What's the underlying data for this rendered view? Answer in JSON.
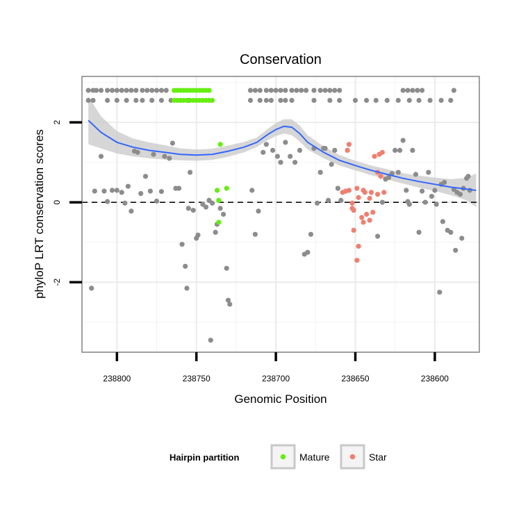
{
  "chart_data": {
    "type": "scatter",
    "title": "Conservation",
    "xlabel": "Genomic Position",
    "ylabel": "phyloP LRT conservation scores",
    "x_reversed": true,
    "xlim": [
      238822,
      238572
    ],
    "ylim": [
      -3.75,
      3.15
    ],
    "x_ticks": [
      238800,
      238750,
      238700,
      238650,
      238600
    ],
    "x_tick_labels": [
      "238800",
      "238750",
      "238700",
      "238650",
      "238600"
    ],
    "y_ticks": [
      -2,
      0,
      2
    ],
    "y_tick_labels": [
      "-2",
      "0",
      "2"
    ],
    "reference_line_y": 0,
    "colors": {
      "none": "#8c8c8c",
      "Mature": "#66ee11",
      "Star": "#f07f6f",
      "smooth": "#3366ff",
      "ribbon": "#c8c8c8",
      "panel_border": "#888888"
    },
    "legend": {
      "title": "Hairpin partition",
      "entries": [
        {
          "label": "Mature",
          "color": "#66ee11"
        },
        {
          "label": "Star",
          "color": "#f07f6f"
        }
      ]
    },
    "series": [
      {
        "name": "none",
        "points": [
          [
            238818,
            2.8
          ],
          [
            238815,
            2.8
          ],
          [
            238813,
            2.8
          ],
          [
            238810,
            2.8
          ],
          [
            238806,
            2.8
          ],
          [
            238803,
            2.8
          ],
          [
            238800,
            2.8
          ],
          [
            238797,
            2.8
          ],
          [
            238794,
            2.8
          ],
          [
            238791,
            2.8
          ],
          [
            238788,
            2.8
          ],
          [
            238784,
            2.8
          ],
          [
            238781,
            2.8
          ],
          [
            238778,
            2.8
          ],
          [
            238775,
            2.8
          ],
          [
            238772,
            2.8
          ],
          [
            238769,
            2.8
          ],
          [
            238716,
            2.8
          ],
          [
            238713,
            2.8
          ],
          [
            238710,
            2.8
          ],
          [
            238706,
            2.8
          ],
          [
            238703,
            2.8
          ],
          [
            238700,
            2.8
          ],
          [
            238697,
            2.8
          ],
          [
            238694,
            2.8
          ],
          [
            238690,
            2.8
          ],
          [
            238687,
            2.8
          ],
          [
            238684,
            2.8
          ],
          [
            238681,
            2.8
          ],
          [
            238676,
            2.8
          ],
          [
            238672,
            2.8
          ],
          [
            238669,
            2.8
          ],
          [
            238666,
            2.8
          ],
          [
            238663,
            2.8
          ],
          [
            238660,
            2.8
          ],
          [
            238620,
            2.8
          ],
          [
            238617,
            2.8
          ],
          [
            238614,
            2.8
          ],
          [
            238611,
            2.8
          ],
          [
            238608,
            2.8
          ],
          [
            238588,
            2.8
          ],
          [
            238818,
            2.55
          ],
          [
            238815,
            2.55
          ],
          [
            238806,
            2.55
          ],
          [
            238800,
            2.55
          ],
          [
            238794,
            2.55
          ],
          [
            238788,
            2.55
          ],
          [
            238784,
            2.55
          ],
          [
            238778,
            2.55
          ],
          [
            238772,
            2.55
          ],
          [
            238766,
            2.55
          ],
          [
            238760,
            2.55
          ],
          [
            238755,
            2.55
          ],
          [
            238716,
            2.55
          ],
          [
            238710,
            2.55
          ],
          [
            238706,
            2.55
          ],
          [
            238703,
            2.55
          ],
          [
            238697,
            2.55
          ],
          [
            238694,
            2.55
          ],
          [
            238690,
            2.55
          ],
          [
            238676,
            2.55
          ],
          [
            238666,
            2.55
          ],
          [
            238660,
            2.55
          ],
          [
            238650,
            2.55
          ],
          [
            238643,
            2.55
          ],
          [
            238637,
            2.55
          ],
          [
            238630,
            2.55
          ],
          [
            238623,
            2.55
          ],
          [
            238616,
            2.55
          ],
          [
            238610,
            2.55
          ],
          [
            238603,
            2.55
          ],
          [
            238596,
            2.55
          ],
          [
            238590,
            2.55
          ],
          [
            238816,
            -2.15
          ],
          [
            238814,
            0.28
          ],
          [
            238810,
            1.15
          ],
          [
            238808,
            0.28
          ],
          [
            238806,
            0.02
          ],
          [
            238803,
            0.3
          ],
          [
            238800,
            0.3
          ],
          [
            238797,
            0.25
          ],
          [
            238795,
            -0.02
          ],
          [
            238793,
            0.4
          ],
          [
            238791,
            -0.22
          ],
          [
            238789,
            1.28
          ],
          [
            238787,
            1.25
          ],
          [
            238785,
            0.22
          ],
          [
            238782,
            0.65
          ],
          [
            238779,
            0.28
          ],
          [
            238777,
            1.2
          ],
          [
            238775,
            0.03
          ],
          [
            238772,
            0.27
          ],
          [
            238770,
            1.15
          ],
          [
            238767,
            1.1
          ],
          [
            238765,
            1.48
          ],
          [
            238763,
            0.35
          ],
          [
            238761,
            0.35
          ],
          [
            238759,
            -1.05
          ],
          [
            238757,
            -1.6
          ],
          [
            238756,
            -2.15
          ],
          [
            238755,
            -0.15
          ],
          [
            238754,
            0.75
          ],
          [
            238752,
            -0.2
          ],
          [
            238750,
            -0.9
          ],
          [
            238749,
            -0.82
          ],
          [
            238746,
            -0.05
          ],
          [
            238744,
            -0.12
          ],
          [
            238742,
            0.05
          ],
          [
            238741,
            -3.45
          ],
          [
            238740,
            -0.02
          ],
          [
            238738,
            -0.75
          ],
          [
            238737,
            -0.55
          ],
          [
            238735,
            -0.15
          ],
          [
            238733,
            -0.3
          ],
          [
            238731,
            -1.65
          ],
          [
            238730,
            -2.45
          ],
          [
            238729,
            -2.55
          ],
          [
            238715,
            0.3
          ],
          [
            238713,
            -0.8
          ],
          [
            238711,
            -0.22
          ],
          [
            238708,
            1.25
          ],
          [
            238706,
            1.45
          ],
          [
            238702,
            1.3
          ],
          [
            238699,
            1.15
          ],
          [
            238697,
            1.0
          ],
          [
            238694,
            1.5
          ],
          [
            238691,
            1.15
          ],
          [
            238688,
            1.0
          ],
          [
            238685,
            1.3
          ],
          [
            238682,
            -1.3
          ],
          [
            238680,
            -1.25
          ],
          [
            238678,
            -0.8
          ],
          [
            238676,
            1.35
          ],
          [
            238674,
            -0.02
          ],
          [
            238672,
            0.75
          ],
          [
            238670,
            1.35
          ],
          [
            238669,
            1.35
          ],
          [
            238667,
            0.05
          ],
          [
            238665,
            0.95
          ],
          [
            238663,
            1.3
          ],
          [
            238661,
            0.35
          ],
          [
            238659,
            0.05
          ],
          [
            238636,
            -0.85
          ],
          [
            238633,
            0.0
          ],
          [
            238631,
            0.58
          ],
          [
            238629,
            0.62
          ],
          [
            238627,
            0.72
          ],
          [
            238625,
            1.3
          ],
          [
            238623,
            0.75
          ],
          [
            238622,
            1.3
          ],
          [
            238620,
            1.55
          ],
          [
            238618,
            0.3
          ],
          [
            238617,
            0.02
          ],
          [
            238616,
            -0.05
          ],
          [
            238614,
            1.3
          ],
          [
            238612,
            0.7
          ],
          [
            238610,
            -0.75
          ],
          [
            238608,
            0.28
          ],
          [
            238606,
            0.0
          ],
          [
            238604,
            0.75
          ],
          [
            238602,
            0.15
          ],
          [
            238600,
            0.3
          ],
          [
            238599,
            -0.05
          ],
          [
            238597,
            -2.25
          ],
          [
            238596,
            0.45
          ],
          [
            238595,
            -0.48
          ],
          [
            238594,
            0.5
          ],
          [
            238592,
            -0.7
          ],
          [
            238590,
            -0.75
          ],
          [
            238588,
            0.32
          ],
          [
            238587,
            -1.2
          ],
          [
            238586,
            0.25
          ],
          [
            238584,
            0.2
          ],
          [
            238583,
            -0.9
          ],
          [
            238582,
            0.35
          ],
          [
            238580,
            0.6
          ],
          [
            238579,
            0.65
          ],
          [
            238578,
            0.3
          ]
        ]
      },
      {
        "name": "Mature",
        "points": [
          [
            238764,
            2.8
          ],
          [
            238762,
            2.8
          ],
          [
            238760,
            2.8
          ],
          [
            238758,
            2.8
          ],
          [
            238756,
            2.8
          ],
          [
            238754,
            2.8
          ],
          [
            238752,
            2.8
          ],
          [
            238750,
            2.8
          ],
          [
            238748,
            2.8
          ],
          [
            238746,
            2.8
          ],
          [
            238744,
            2.8
          ],
          [
            238742,
            2.8
          ],
          [
            238764,
            2.55
          ],
          [
            238762,
            2.55
          ],
          [
            238760,
            2.55
          ],
          [
            238758,
            2.55
          ],
          [
            238756,
            2.55
          ],
          [
            238754,
            2.55
          ],
          [
            238752,
            2.55
          ],
          [
            238750,
            2.55
          ],
          [
            238748,
            2.55
          ],
          [
            238746,
            2.55
          ],
          [
            238744,
            2.55
          ],
          [
            238742,
            2.55
          ],
          [
            238740,
            2.55
          ],
          [
            238735,
            1.45
          ],
          [
            238731,
            0.35
          ],
          [
            238737,
            0.3
          ],
          [
            238736,
            0.05
          ],
          [
            238736,
            -0.5
          ]
        ]
      },
      {
        "name": "Star",
        "points": [
          [
            238654,
            1.45
          ],
          [
            238655,
            1.3
          ],
          [
            238658,
            0.25
          ],
          [
            238656,
            0.28
          ],
          [
            238654,
            0.3
          ],
          [
            238652,
            -0.02
          ],
          [
            238652,
            -0.15
          ],
          [
            238651,
            -0.2
          ],
          [
            238651,
            -0.7
          ],
          [
            238649,
            0.35
          ],
          [
            238648,
            0.12
          ],
          [
            238648,
            -1.1
          ],
          [
            238649,
            -1.45
          ],
          [
            238646,
            -0.38
          ],
          [
            238645,
            0.3
          ],
          [
            238645,
            -0.5
          ],
          [
            238644,
            0.25
          ],
          [
            238643,
            -0.3
          ],
          [
            238641,
            -0.45
          ],
          [
            238641,
            0.1
          ],
          [
            238640,
            0.25
          ],
          [
            238639,
            -0.25
          ],
          [
            238638,
            1.15
          ],
          [
            238636,
            0.2
          ],
          [
            238636,
            0.75
          ],
          [
            238635,
            1.2
          ],
          [
            238634,
            0.65
          ],
          [
            238633,
            1.25
          ],
          [
            238632,
            0.25
          ]
        ]
      }
    ],
    "smooth_curve": {
      "x": [
        238818,
        238810,
        238800,
        238790,
        238780,
        238770,
        238760,
        238750,
        238740,
        238730,
        238720,
        238712,
        238705,
        238700,
        238695,
        238690,
        238685,
        238680,
        238670,
        238660,
        238650,
        238640,
        238630,
        238620,
        238610,
        238600,
        238590,
        238580,
        238574
      ],
      "y": [
        2.05,
        1.75,
        1.5,
        1.38,
        1.3,
        1.25,
        1.2,
        1.18,
        1.2,
        1.28,
        1.38,
        1.5,
        1.7,
        1.82,
        1.9,
        1.88,
        1.72,
        1.5,
        1.25,
        1.05,
        0.92,
        0.8,
        0.7,
        0.6,
        0.52,
        0.45,
        0.38,
        0.33,
        0.3
      ],
      "lower": [
        1.45,
        1.35,
        1.22,
        1.15,
        1.1,
        1.07,
        1.05,
        1.04,
        1.06,
        1.14,
        1.25,
        1.38,
        1.56,
        1.66,
        1.72,
        1.68,
        1.52,
        1.32,
        1.1,
        0.92,
        0.8,
        0.68,
        0.57,
        0.47,
        0.37,
        0.28,
        0.18,
        0.05,
        -0.12
      ],
      "upper": [
        2.65,
        2.15,
        1.78,
        1.6,
        1.5,
        1.43,
        1.35,
        1.32,
        1.34,
        1.42,
        1.51,
        1.62,
        1.84,
        1.98,
        2.08,
        2.08,
        1.92,
        1.68,
        1.4,
        1.18,
        1.04,
        0.92,
        0.83,
        0.73,
        0.67,
        0.62,
        0.58,
        0.61,
        0.72
      ]
    }
  }
}
